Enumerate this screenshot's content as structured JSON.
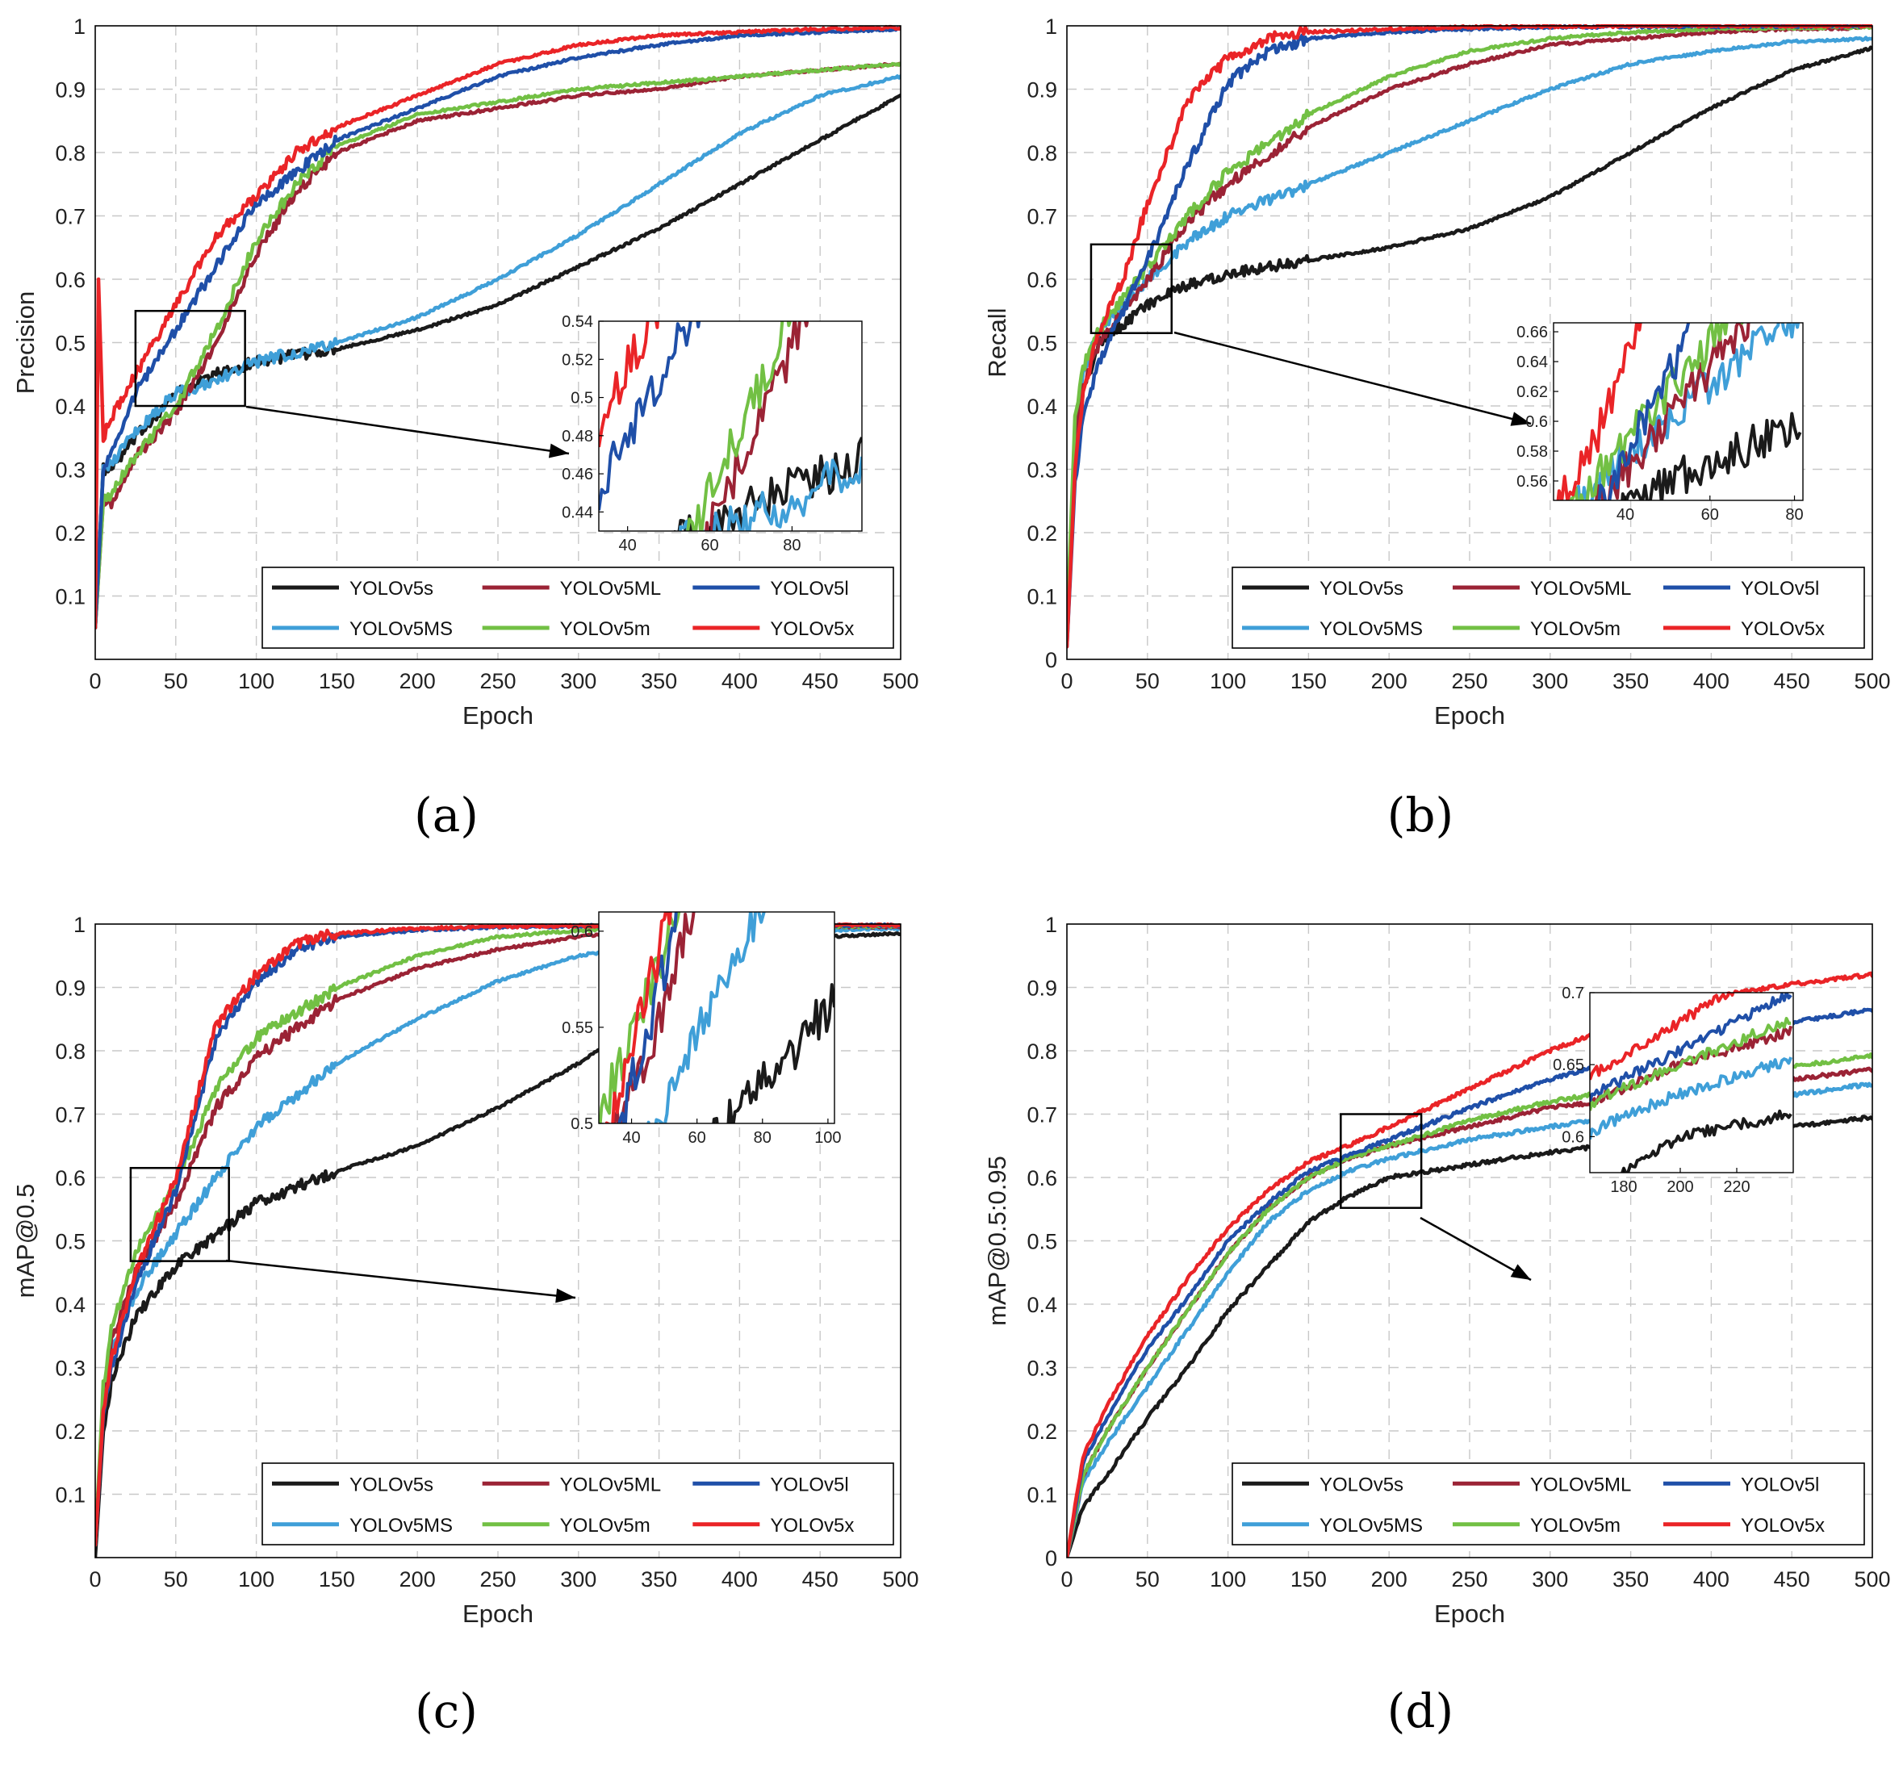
{
  "series_names": [
    "YOLOv5s",
    "YOLOv5MS",
    "YOLOv5ML",
    "YOLOv5m",
    "YOLOv5l",
    "YOLOv5x"
  ],
  "series_colors": {
    "YOLOv5s": "#1a1a1a",
    "YOLOv5MS": "#3f9fd8",
    "YOLOv5ML": "#9b2335",
    "YOLOv5m": "#72c044",
    "YOLOv5l": "#1f4fa8",
    "YOLOv5x": "#ea2427"
  },
  "chart_data": [
    {
      "panel": "(a)",
      "type": "line",
      "xlabel": "Epoch",
      "ylabel": "Precision",
      "xlim": [
        0,
        500
      ],
      "ylim": [
        0,
        1
      ],
      "xticks": [
        0,
        50,
        100,
        150,
        200,
        250,
        300,
        350,
        400,
        450,
        500
      ],
      "yticks": [
        0.1,
        0.2,
        0.3,
        0.4,
        0.5,
        0.6,
        0.7,
        0.8,
        0.9,
        1
      ],
      "grid": true,
      "legend_position": "bottom-right",
      "series": [
        {
          "name": "YOLOv5s",
          "x": [
            0,
            5,
            10,
            25,
            50,
            75,
            100,
            150,
            200,
            250,
            300,
            350,
            400,
            450,
            500
          ],
          "y": [
            0.05,
            0.3,
            0.3,
            0.35,
            0.42,
            0.45,
            0.47,
            0.49,
            0.52,
            0.56,
            0.62,
            0.68,
            0.75,
            0.82,
            0.89
          ]
        },
        {
          "name": "YOLOv5MS",
          "x": [
            0,
            5,
            10,
            25,
            50,
            75,
            100,
            150,
            200,
            250,
            300,
            350,
            400,
            450,
            500
          ],
          "y": [
            0.05,
            0.3,
            0.31,
            0.36,
            0.42,
            0.44,
            0.47,
            0.5,
            0.54,
            0.6,
            0.67,
            0.75,
            0.83,
            0.89,
            0.92
          ]
        },
        {
          "name": "YOLOv5ML",
          "x": [
            0,
            5,
            10,
            25,
            50,
            75,
            100,
            125,
            150,
            200,
            250,
            300,
            350,
            400,
            450,
            500
          ],
          "y": [
            0.05,
            0.25,
            0.24,
            0.32,
            0.39,
            0.5,
            0.64,
            0.74,
            0.8,
            0.85,
            0.87,
            0.89,
            0.9,
            0.92,
            0.93,
            0.94
          ]
        },
        {
          "name": "YOLOv5m",
          "x": [
            0,
            5,
            10,
            25,
            50,
            75,
            100,
            125,
            150,
            200,
            250,
            300,
            350,
            400,
            450,
            500
          ],
          "y": [
            0.05,
            0.25,
            0.26,
            0.32,
            0.4,
            0.52,
            0.66,
            0.75,
            0.81,
            0.86,
            0.88,
            0.9,
            0.91,
            0.92,
            0.93,
            0.94
          ]
        },
        {
          "name": "YOLOv5l",
          "x": [
            0,
            5,
            10,
            25,
            50,
            75,
            100,
            125,
            150,
            200,
            250,
            300,
            350,
            400,
            450,
            500
          ],
          "y": [
            0.05,
            0.3,
            0.33,
            0.42,
            0.52,
            0.62,
            0.72,
            0.77,
            0.82,
            0.87,
            0.92,
            0.95,
            0.97,
            0.985,
            0.99,
            0.995
          ]
        },
        {
          "name": "YOLOv5x",
          "x": [
            0,
            2,
            5,
            10,
            25,
            50,
            75,
            100,
            125,
            150,
            200,
            250,
            300,
            350,
            400,
            450,
            500
          ],
          "y": [
            0.05,
            0.6,
            0.35,
            0.38,
            0.45,
            0.56,
            0.67,
            0.73,
            0.8,
            0.84,
            0.89,
            0.94,
            0.97,
            0.985,
            0.99,
            0.995,
            0.997
          ]
        }
      ],
      "inset": {
        "xticks": [
          40,
          60,
          80
        ],
        "yticks": [
          0.44,
          0.46,
          0.48,
          0.5,
          0.52,
          0.54
        ],
        "xlim": [
          33,
          97
        ],
        "ylim": [
          0.43,
          0.54
        ]
      }
    },
    {
      "panel": "(b)",
      "type": "line",
      "xlabel": "Epoch",
      "ylabel": "Recall",
      "xlim": [
        0,
        500
      ],
      "ylim": [
        0,
        1
      ],
      "xticks": [
        0,
        50,
        100,
        150,
        200,
        250,
        300,
        350,
        400,
        450,
        500
      ],
      "yticks": [
        0,
        0.1,
        0.2,
        0.3,
        0.4,
        0.5,
        0.6,
        0.7,
        0.8,
        0.9,
        1
      ],
      "grid": true,
      "legend_position": "bottom-right",
      "series": [
        {
          "name": "YOLOv5s",
          "x": [
            0,
            5,
            10,
            20,
            50,
            75,
            100,
            150,
            200,
            250,
            300,
            350,
            400,
            450,
            500
          ],
          "y": [
            0.05,
            0.3,
            0.42,
            0.5,
            0.56,
            0.59,
            0.61,
            0.63,
            0.65,
            0.68,
            0.73,
            0.8,
            0.87,
            0.93,
            0.965
          ]
        },
        {
          "name": "YOLOv5MS",
          "x": [
            0,
            5,
            10,
            20,
            50,
            75,
            100,
            150,
            200,
            250,
            300,
            350,
            400,
            450,
            500
          ],
          "y": [
            0.05,
            0.35,
            0.45,
            0.52,
            0.6,
            0.66,
            0.7,
            0.75,
            0.8,
            0.85,
            0.9,
            0.94,
            0.96,
            0.975,
            0.98
          ]
        },
        {
          "name": "YOLOv5ML",
          "x": [
            0,
            5,
            10,
            20,
            50,
            75,
            100,
            150,
            200,
            250,
            300,
            350,
            400,
            450,
            500
          ],
          "y": [
            0.05,
            0.35,
            0.43,
            0.5,
            0.6,
            0.69,
            0.75,
            0.84,
            0.9,
            0.94,
            0.97,
            0.98,
            0.99,
            0.995,
            0.997
          ]
        },
        {
          "name": "YOLOv5m",
          "x": [
            0,
            5,
            10,
            20,
            50,
            75,
            100,
            150,
            200,
            250,
            300,
            350,
            400,
            450,
            500
          ],
          "y": [
            0.05,
            0.38,
            0.46,
            0.52,
            0.62,
            0.7,
            0.77,
            0.86,
            0.92,
            0.96,
            0.98,
            0.99,
            0.995,
            0.997,
            0.998
          ]
        },
        {
          "name": "YOLOv5l",
          "x": [
            0,
            5,
            10,
            20,
            35,
            50,
            75,
            100,
            125,
            150,
            200,
            250,
            300,
            400,
            500
          ],
          "y": [
            0.02,
            0.28,
            0.38,
            0.47,
            0.55,
            0.63,
            0.78,
            0.91,
            0.96,
            0.98,
            0.99,
            0.995,
            0.998,
            0.999,
            1.0
          ]
        },
        {
          "name": "YOLOv5x",
          "x": [
            0,
            5,
            10,
            20,
            35,
            50,
            75,
            100,
            125,
            150,
            200,
            250,
            300,
            400,
            500
          ],
          "y": [
            0.02,
            0.3,
            0.42,
            0.52,
            0.6,
            0.72,
            0.88,
            0.95,
            0.98,
            0.99,
            0.995,
            0.998,
            0.999,
            1.0,
            1.0
          ]
        }
      ],
      "inset": {
        "xticks": [
          40,
          60,
          80
        ],
        "yticks": [
          0.56,
          0.58,
          0.6,
          0.62,
          0.64,
          0.66
        ],
        "xlim": [
          23,
          82
        ],
        "ylim": [
          0.547,
          0.666
        ]
      }
    },
    {
      "panel": "(c)",
      "type": "line",
      "xlabel": "Epoch",
      "ylabel": "mAP@0.5",
      "xlim": [
        0,
        500
      ],
      "ylim": [
        0,
        1
      ],
      "xticks": [
        0,
        50,
        100,
        150,
        200,
        250,
        300,
        350,
        400,
        450,
        500
      ],
      "yticks": [
        0.1,
        0.2,
        0.3,
        0.4,
        0.5,
        0.6,
        0.7,
        0.8,
        0.9,
        1
      ],
      "grid": true,
      "legend_position": "bottom-right",
      "series": [
        {
          "name": "YOLOv5s",
          "x": [
            0,
            5,
            10,
            25,
            50,
            75,
            100,
            150,
            200,
            250,
            300,
            350,
            400,
            450,
            500
          ],
          "y": [
            0.0,
            0.2,
            0.28,
            0.38,
            0.46,
            0.51,
            0.56,
            0.61,
            0.65,
            0.71,
            0.78,
            0.87,
            0.94,
            0.98,
            0.985
          ]
        },
        {
          "name": "YOLOv5MS",
          "x": [
            0,
            5,
            10,
            25,
            50,
            75,
            100,
            150,
            200,
            250,
            300,
            350,
            400,
            450,
            500
          ],
          "y": [
            0.02,
            0.24,
            0.32,
            0.42,
            0.51,
            0.6,
            0.68,
            0.78,
            0.85,
            0.91,
            0.95,
            0.97,
            0.98,
            0.99,
            0.993
          ]
        },
        {
          "name": "YOLOv5ML",
          "x": [
            0,
            5,
            10,
            25,
            50,
            75,
            100,
            150,
            200,
            250,
            300,
            350,
            400,
            450,
            500
          ],
          "y": [
            0.02,
            0.25,
            0.34,
            0.45,
            0.56,
            0.71,
            0.79,
            0.88,
            0.93,
            0.96,
            0.98,
            0.99,
            0.993,
            0.995,
            0.996
          ]
        },
        {
          "name": "YOLOv5m",
          "x": [
            0,
            5,
            10,
            25,
            50,
            75,
            100,
            150,
            200,
            250,
            300,
            350,
            400,
            450,
            500
          ],
          "y": [
            0.02,
            0.27,
            0.36,
            0.48,
            0.59,
            0.74,
            0.82,
            0.9,
            0.95,
            0.98,
            0.99,
            0.993,
            0.995,
            0.996,
            0.997
          ]
        },
        {
          "name": "YOLOv5l",
          "x": [
            0,
            5,
            10,
            25,
            50,
            75,
            100,
            125,
            150,
            200,
            250,
            300,
            400,
            500
          ],
          "y": [
            0.02,
            0.22,
            0.3,
            0.43,
            0.58,
            0.82,
            0.91,
            0.96,
            0.98,
            0.99,
            0.995,
            0.997,
            0.998,
            0.998
          ]
        },
        {
          "name": "YOLOv5x",
          "x": [
            0,
            5,
            10,
            25,
            50,
            75,
            100,
            125,
            150,
            200,
            250,
            300,
            400,
            500
          ],
          "y": [
            0.02,
            0.23,
            0.31,
            0.45,
            0.6,
            0.84,
            0.92,
            0.97,
            0.985,
            0.993,
            0.996,
            0.997,
            0.998,
            0.998
          ]
        }
      ],
      "inset": {
        "xticks": [
          40,
          60,
          80,
          100
        ],
        "yticks": [
          0.5,
          0.55,
          0.6
        ],
        "xlim": [
          30,
          102
        ],
        "ylim": [
          0.5,
          0.61
        ]
      }
    },
    {
      "panel": "(d)",
      "type": "line",
      "xlabel": "Epoch",
      "ylabel": "mAP@0.5:0.95",
      "xlim": [
        0,
        500
      ],
      "ylim": [
        0,
        1
      ],
      "xticks": [
        0,
        50,
        100,
        150,
        200,
        250,
        300,
        350,
        400,
        450,
        500
      ],
      "yticks": [
        0,
        0.1,
        0.2,
        0.3,
        0.4,
        0.5,
        0.6,
        0.7,
        0.8,
        0.9,
        1
      ],
      "grid": true,
      "legend_position": "bottom-right",
      "series": [
        {
          "name": "YOLOv5s",
          "x": [
            0,
            10,
            25,
            50,
            75,
            100,
            125,
            150,
            175,
            200,
            250,
            300,
            350,
            400,
            450,
            500
          ],
          "y": [
            0.0,
            0.08,
            0.13,
            0.22,
            0.3,
            0.39,
            0.46,
            0.53,
            0.57,
            0.6,
            0.62,
            0.64,
            0.655,
            0.665,
            0.68,
            0.695
          ]
        },
        {
          "name": "YOLOv5MS",
          "x": [
            0,
            10,
            25,
            50,
            75,
            100,
            125,
            150,
            175,
            200,
            250,
            300,
            350,
            400,
            450,
            500
          ],
          "y": [
            0.0,
            0.12,
            0.18,
            0.27,
            0.36,
            0.45,
            0.53,
            0.58,
            0.61,
            0.63,
            0.66,
            0.68,
            0.7,
            0.71,
            0.73,
            0.748
          ]
        },
        {
          "name": "YOLOv5ML",
          "x": [
            0,
            10,
            25,
            50,
            75,
            100,
            125,
            150,
            175,
            200,
            250,
            300,
            350,
            400,
            450,
            500
          ],
          "y": [
            0.0,
            0.13,
            0.2,
            0.3,
            0.39,
            0.48,
            0.55,
            0.6,
            0.63,
            0.65,
            0.68,
            0.71,
            0.725,
            0.74,
            0.755,
            0.77
          ]
        },
        {
          "name": "YOLOv5m",
          "x": [
            0,
            10,
            25,
            50,
            75,
            100,
            125,
            150,
            175,
            200,
            250,
            300,
            350,
            400,
            450,
            500
          ],
          "y": [
            0.0,
            0.13,
            0.2,
            0.3,
            0.39,
            0.48,
            0.55,
            0.6,
            0.63,
            0.65,
            0.69,
            0.72,
            0.74,
            0.76,
            0.775,
            0.792
          ]
        },
        {
          "name": "YOLOv5l",
          "x": [
            0,
            10,
            25,
            50,
            75,
            100,
            125,
            150,
            175,
            200,
            250,
            300,
            350,
            400,
            450,
            500
          ],
          "y": [
            0.0,
            0.15,
            0.22,
            0.33,
            0.41,
            0.5,
            0.56,
            0.61,
            0.635,
            0.66,
            0.71,
            0.755,
            0.79,
            0.82,
            0.845,
            0.865
          ]
        },
        {
          "name": "YOLOv5x",
          "x": [
            0,
            10,
            25,
            50,
            75,
            100,
            125,
            150,
            175,
            200,
            250,
            300,
            350,
            400,
            450,
            500
          ],
          "y": [
            0.0,
            0.16,
            0.24,
            0.35,
            0.44,
            0.52,
            0.58,
            0.625,
            0.65,
            0.68,
            0.74,
            0.8,
            0.85,
            0.885,
            0.905,
            0.92
          ]
        }
      ],
      "inset": {
        "xticks": [
          180,
          200,
          220
        ],
        "yticks": [
          0.6,
          0.65,
          0.7
        ],
        "xlim": [
          168,
          240
        ],
        "ylim": [
          0.575,
          0.7
        ]
      }
    }
  ]
}
